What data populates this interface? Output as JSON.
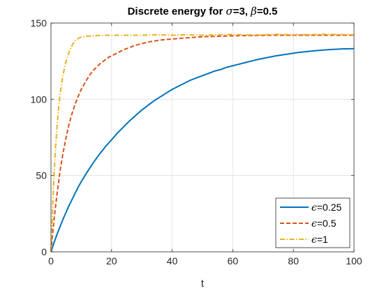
{
  "chart_data": {
    "type": "line",
    "title": {
      "prefix": "Discrete energy for ",
      "sym1": "σ",
      "mid": "=3, ",
      "sym2": "β",
      "suffix": "=0.5"
    },
    "xlabel": "t",
    "ylabel": "",
    "xlim": [
      0,
      100
    ],
    "ylim": [
      0,
      150
    ],
    "xticks": [
      0,
      20,
      40,
      60,
      80,
      100
    ],
    "yticks": [
      0,
      50,
      100,
      150
    ],
    "grid": true,
    "legend_position": "bottom-right",
    "series": [
      {
        "name": "ϵ=0.25",
        "name_symbol": "ϵ",
        "name_value": "=0.25",
        "color": "#0072BD",
        "style": "solid",
        "x": [
          0,
          1,
          2,
          3,
          4,
          5,
          6,
          7,
          8,
          9,
          10,
          12,
          14,
          16,
          18,
          20,
          22,
          24,
          26,
          28,
          30,
          32,
          34,
          36,
          38,
          40,
          42,
          44,
          46,
          48,
          50,
          52,
          54,
          56,
          58,
          60,
          62,
          64,
          66,
          68,
          70,
          72,
          74,
          76,
          78,
          80,
          82,
          84,
          86,
          88,
          90,
          92,
          94,
          96,
          98,
          100
        ],
        "y": [
          0,
          6,
          11.5,
          16.5,
          21.5,
          26,
          30.5,
          34.5,
          38.5,
          42.5,
          46,
          52.5,
          58.5,
          64,
          69,
          73.5,
          78,
          82,
          86,
          89.5,
          93,
          96,
          99,
          101.5,
          104,
          106.5,
          108.5,
          110.5,
          112.5,
          114,
          115.5,
          117,
          118.5,
          119.5,
          121,
          122,
          123,
          124,
          125,
          126,
          126.8,
          127.6,
          128.4,
          129,
          129.6,
          130.2,
          130.8,
          131.2,
          131.6,
          132,
          132.3,
          132.6,
          132.8,
          133,
          133.1,
          133.2
        ]
      },
      {
        "name": "ϵ=0.5",
        "name_symbol": "ϵ",
        "name_value": "=0.5",
        "color": "#D95319",
        "style": "dashed",
        "x": [
          0,
          1,
          2,
          3,
          4,
          5,
          6,
          7,
          8,
          9,
          10,
          11,
          12,
          13,
          14,
          15,
          16,
          17,
          18,
          19,
          20,
          22,
          24,
          26,
          28,
          30,
          32,
          34,
          36,
          38,
          40,
          45,
          50,
          55,
          60,
          65,
          70,
          75,
          80,
          85,
          90,
          95,
          100
        ],
        "y": [
          0,
          21,
          38,
          53,
          65,
          75,
          84,
          91,
          97,
          102,
          106.5,
          110,
          113.5,
          116.5,
          119,
          121,
          123,
          124.5,
          126,
          127.5,
          128.5,
          130.5,
          132.5,
          134,
          135.5,
          136.5,
          137.5,
          138.2,
          138.8,
          139.2,
          139.5,
          140.3,
          141,
          141.3,
          141.6,
          141.8,
          141.9,
          142,
          142,
          142,
          142,
          142,
          142
        ]
      },
      {
        "name": "ϵ=1",
        "name_symbol": "ϵ",
        "name_value": "=1",
        "color": "#EDB120",
        "style": "dash-dot",
        "x": [
          0,
          0.5,
          1,
          1.5,
          2,
          2.5,
          3,
          3.5,
          4,
          4.5,
          5,
          6,
          7,
          8,
          9,
          10,
          12,
          14,
          16,
          18,
          20,
          25,
          30,
          35,
          40,
          45,
          50,
          55,
          60,
          65,
          70,
          75,
          80,
          85,
          90,
          95,
          100
        ],
        "y": [
          0,
          27,
          50,
          68,
          82,
          94,
          103,
          110,
          116,
          121,
          125,
          131,
          135.5,
          138.5,
          140,
          140.8,
          141.3,
          141.6,
          141.9,
          142,
          142,
          142,
          142,
          142.3,
          142,
          142.3,
          142,
          142.3,
          142.5,
          142.2,
          142.3,
          142.6,
          142.3,
          142.4,
          142.6,
          142.5,
          142.3
        ]
      }
    ]
  }
}
